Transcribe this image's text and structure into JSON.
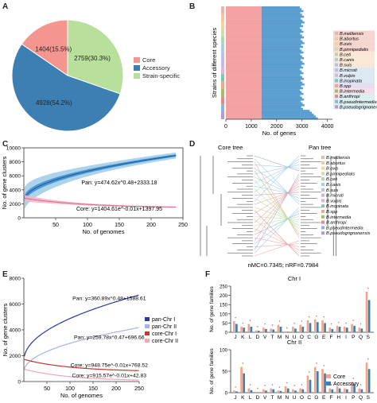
{
  "chart_data": [
    {
      "panel": "A",
      "type": "pie",
      "slices": [
        {
          "name": "Core",
          "value": 1404,
          "label": "1404(15.5%)",
          "color": "#f4968f"
        },
        {
          "name": "Accessory",
          "value": 4928,
          "label": "4928(54.2%)",
          "color": "#3d7fb3"
        },
        {
          "name": "Strain-specific",
          "value": 2759,
          "label": "2759(30.3%)",
          "color": "#b9df9c"
        }
      ]
    },
    {
      "panel": "B",
      "type": "bar",
      "orientation": "horizontal-stacked",
      "xlabel": "No. of genes",
      "ylabel": "Strains of different species",
      "xticks": [
        "0",
        "1000",
        "2000",
        "3000",
        "4000"
      ],
      "xlim": [
        0,
        4200
      ],
      "series": [
        {
          "name": "Core",
          "color": "#f4a1a1",
          "value": 1404
        },
        {
          "name": "Accessory",
          "color": "#5a9fd0",
          "value": 1600
        }
      ],
      "legend": [
        "B.melitensis",
        "B.abortus",
        "B.ovis",
        "B.pinnipedialis",
        "B.ceti",
        "B.canis",
        "B.suis",
        "B.microti",
        "B.vulpis",
        "B.inopinata",
        "B.spp",
        "B.intermedia",
        "B.anthropi",
        "B.pseudintermedia",
        "B.pseudogrignonensis"
      ],
      "legend_colors": [
        "#e8b7ae",
        "#f0c7a0",
        "#f2d49a",
        "#cfdcae",
        "#aed6b3",
        "#a8cfe0",
        "#b6c1e6",
        "#c9b7e0",
        "#e0b4d6",
        "#7fc6b0",
        "#f0a988",
        "#a8bb6a",
        "#e08c8c",
        "#8fb4d8",
        "#b59ad2"
      ]
    },
    {
      "panel": "C",
      "type": "line",
      "xlabel": "No. of genomes",
      "ylabel": "No. of gene clusters",
      "xlim": [
        0,
        250
      ],
      "ylim": [
        0,
        10000
      ],
      "xticks": [
        "50",
        "100",
        "150",
        "200",
        "250"
      ],
      "yticks": [
        "0",
        "2000",
        "4000",
        "6000",
        "8000",
        "10000"
      ],
      "series": [
        {
          "name": "Pan",
          "color": "#2d7fc9",
          "equation": "Pan: y=474.62x^0.48+2333.18",
          "a": 474.62,
          "b": 0.48,
          "c": 2333.18
        },
        {
          "name": "Core",
          "color": "#d96a8c",
          "equation": "Core: y=1404.61e^-0.01x+1397.95",
          "a": 1404.61,
          "b": -0.01,
          "c": 1397.95
        }
      ]
    },
    {
      "panel": "D",
      "type": "tree",
      "left_label": "Core tree",
      "right_label": "Pan tree",
      "stats": "nMC=0.7345; nRF=0.7984",
      "legend": [
        "B.melitensis",
        "B.abortus",
        "B.ovis",
        "B.pinnipedialis",
        "B.ceti",
        "B.canis",
        "B.suis",
        "B.microti",
        "B.vulpis",
        "B.inopinata",
        "B.spp",
        "B.intermedia",
        "B.anthropi",
        "B.pseudintermedia",
        "B.pseudogrignonensis"
      ]
    },
    {
      "panel": "E",
      "type": "line",
      "xlabel": "No. of genomes",
      "ylabel": "No. of gene clusters",
      "xlim": [
        0,
        250
      ],
      "ylim": [
        0,
        8000
      ],
      "xticks": [
        "50",
        "100",
        "150",
        "200",
        "250"
      ],
      "yticks": [
        "0",
        "2000",
        "4000",
        "6000",
        "8000"
      ],
      "series": [
        {
          "name": "pan-Chr I",
          "color": "#2b3a9e",
          "equation": "Pan: y=360.89x^0.48+1588.61",
          "kind": "pow",
          "a": 360.89,
          "b": 0.48,
          "c": 1588.61
        },
        {
          "name": "pan-Chr II",
          "color": "#a8b2e6",
          "equation": "Pan: y=259.78x^0.47+696.66",
          "kind": "pow",
          "a": 259.78,
          "b": 0.47,
          "c": 696.66
        },
        {
          "name": "core-Chr I",
          "color": "#c8342e",
          "equation": "Core: y=948.75e^-0.01x+768.52",
          "kind": "exp",
          "a": 948.75,
          "b": -0.01,
          "c": 768.52
        },
        {
          "name": "core-Chr II",
          "color": "#f2a6b6",
          "equation": "Core: y=915.57e^-0.01x+42.83",
          "kind": "exp",
          "a": 915.57,
          "b": -0.01,
          "c": 42.83
        }
      ]
    },
    {
      "panel": "F",
      "type": "bar",
      "subcharts": [
        {
          "title": "Chr I",
          "ylabel": "No. of gene families",
          "ylim": [
            0,
            250
          ],
          "yticks": [
            "0",
            "50",
            "100",
            "150",
            "200",
            "250"
          ],
          "categories": [
            "J",
            "K",
            "L",
            "D",
            "V",
            "T",
            "M",
            "N",
            "U",
            "O",
            "C",
            "G",
            "E",
            "F",
            "H",
            "I",
            "P",
            "Q",
            "S"
          ],
          "series": [
            {
              "name": "Core",
              "color": "#f2a58a",
              "values": [
                60,
                30,
                45,
                10,
                25,
                20,
                40,
                5,
                30,
                40,
                65,
                70,
                65,
                25,
                35,
                30,
                45,
                25,
                220
              ]
            },
            {
              "name": "Accessory",
              "color": "#3d7fb3",
              "values": [
                45,
                25,
                30,
                8,
                18,
                15,
                30,
                3,
                20,
                30,
                50,
                55,
                50,
                18,
                30,
                25,
                35,
                20,
                175
              ]
            }
          ]
        },
        {
          "title": "Chr II",
          "ylabel": "No. of gene families",
          "ylim": [
            0,
            100
          ],
          "yticks": [
            "0",
            "50",
            "100"
          ],
          "categories": [
            "J",
            "K",
            "L",
            "D",
            "V",
            "T",
            "M",
            "N",
            "U",
            "O",
            "C",
            "G",
            "E",
            "F",
            "H",
            "I",
            "P",
            "Q",
            "S"
          ],
          "series": [
            {
              "name": "Core",
              "color": "#f2a58a",
              "values": [
                5,
                60,
                10,
                2,
                8,
                10,
                5,
                15,
                8,
                10,
                40,
                60,
                55,
                10,
                15,
                10,
                25,
                10,
                70
              ]
            },
            {
              "name": "Accessory",
              "color": "#3d7fb3",
              "values": [
                3,
                45,
                6,
                1,
                5,
                8,
                4,
                10,
                5,
                8,
                30,
                50,
                45,
                8,
                10,
                8,
                20,
                8,
                55
              ]
            }
          ]
        }
      ],
      "legend": [
        "Core",
        "Accessory"
      ]
    }
  ],
  "panels": {
    "a": "A",
    "b": "B",
    "c": "C",
    "d": "D",
    "e": "E",
    "f": "F"
  }
}
